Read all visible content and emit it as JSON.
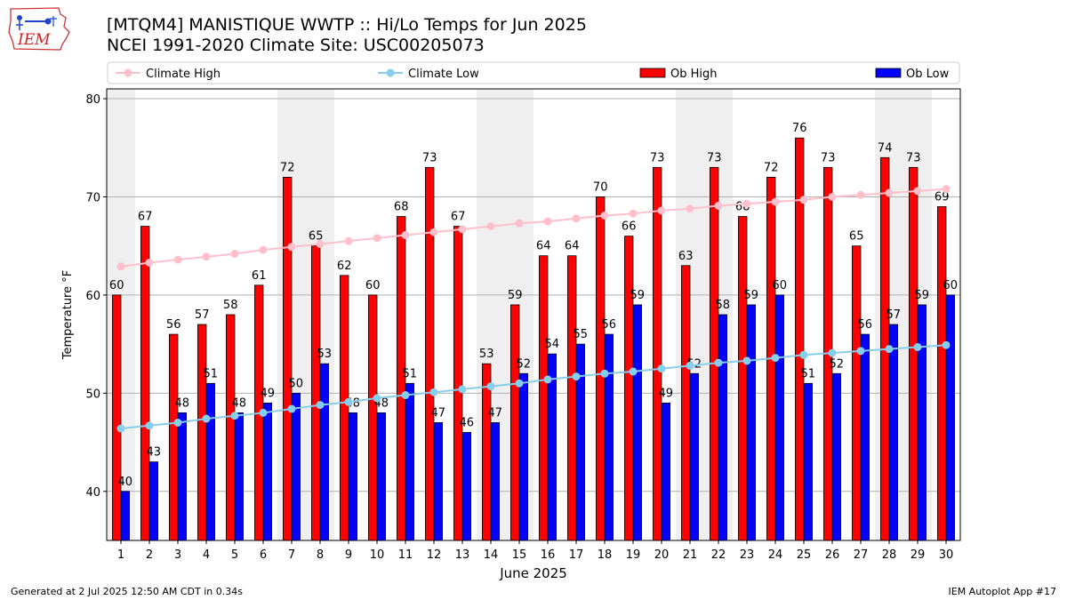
{
  "header": {
    "title": "[MTQM4] MANISTIQUE WWTP :: Hi/Lo Temps for Jun 2025",
    "subtitle": "NCEI 1991-2020 Climate Site: USC00205073",
    "logo_text": "IEM"
  },
  "footer": {
    "left": "Generated at 2 Jul 2025 12:50 AM CDT in 0.34s",
    "right": "IEM Autoplot App #17"
  },
  "chart_data": {
    "type": "bar",
    "title": "[MTQM4] MANISTIQUE WWTP :: Hi/Lo Temps for Jun 2025",
    "xlabel": "June 2025",
    "ylabel": "Temperature °F",
    "ylim": [
      35,
      81
    ],
    "yticks": [
      40,
      50,
      60,
      70,
      80
    ],
    "grid": true,
    "legend_position": "top",
    "categories": [
      "1",
      "2",
      "3",
      "4",
      "5",
      "6",
      "7",
      "8",
      "9",
      "10",
      "11",
      "12",
      "13",
      "14",
      "15",
      "16",
      "17",
      "18",
      "19",
      "20",
      "21",
      "22",
      "23",
      "24",
      "25",
      "26",
      "27",
      "28",
      "29",
      "30"
    ],
    "weekend_shading_days": [
      1,
      7,
      8,
      14,
      15,
      21,
      22,
      28,
      29
    ],
    "series": [
      {
        "name": "Ob High",
        "kind": "bar",
        "color": "#ff0000",
        "values": [
          60,
          67,
          56,
          57,
          58,
          61,
          72,
          65,
          62,
          60,
          68,
          73,
          67,
          53,
          59,
          64,
          64,
          70,
          66,
          73,
          63,
          73,
          68,
          72,
          76,
          73,
          65,
          74,
          73,
          69
        ]
      },
      {
        "name": "Ob Low",
        "kind": "bar",
        "color": "#0000ff",
        "values": [
          40,
          43,
          48,
          51,
          48,
          49,
          50,
          53,
          48,
          48,
          51,
          47,
          46,
          47,
          52,
          54,
          55,
          56,
          59,
          49,
          52,
          58,
          59,
          60,
          51,
          52,
          56,
          57,
          59,
          60
        ]
      },
      {
        "name": "Climate High",
        "kind": "line",
        "color": "#ffc0cb",
        "values": [
          62.9,
          63.3,
          63.6,
          63.9,
          64.2,
          64.6,
          64.9,
          65.2,
          65.5,
          65.8,
          66.1,
          66.4,
          66.7,
          67.0,
          67.3,
          67.5,
          67.8,
          68.1,
          68.3,
          68.6,
          68.8,
          69.1,
          69.3,
          69.5,
          69.7,
          70.0,
          70.2,
          70.4,
          70.6,
          70.8
        ]
      },
      {
        "name": "Climate Low",
        "kind": "line",
        "color": "#87ceeb",
        "values": [
          46.4,
          46.7,
          47.0,
          47.4,
          47.7,
          48.0,
          48.4,
          48.8,
          49.1,
          49.5,
          49.8,
          50.1,
          50.4,
          50.7,
          51.0,
          51.4,
          51.7,
          52.0,
          52.2,
          52.5,
          52.8,
          53.1,
          53.3,
          53.6,
          53.9,
          54.1,
          54.3,
          54.5,
          54.7,
          54.9
        ]
      }
    ],
    "legend": [
      "Climate High",
      "Climate Low",
      "Ob High",
      "Ob Low"
    ]
  }
}
